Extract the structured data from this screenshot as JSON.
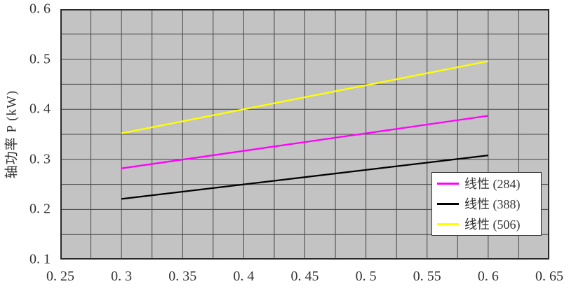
{
  "colors": {
    "page_bg": "#ffffff",
    "plot_bg": "#c3c3c3",
    "gridline": "#454545",
    "plot_border": "#2a2a2a",
    "text": "#333333",
    "legend_bg": "#ffffff",
    "legend_border": "#333333"
  },
  "chart_data": {
    "type": "line",
    "title": "",
    "xlabel": "",
    "ylabel": "轴功率 P (kW)",
    "xlim": [
      0.25,
      0.65
    ],
    "ylim": [
      0.1,
      0.6
    ],
    "x_ticks": [
      0.25,
      0.3,
      0.35,
      0.4,
      0.45,
      0.5,
      0.55,
      0.6,
      0.65
    ],
    "x_tick_labels": [
      "0. 25",
      "0. 3",
      "0. 35",
      "0. 4",
      "0. 45",
      "0. 5",
      "0. 55",
      "0. 6",
      "0. 65"
    ],
    "y_ticks": [
      0.6,
      0.5,
      0.4,
      0.3,
      0.2,
      0.1
    ],
    "y_tick_labels": [
      "0. 6",
      "0. 5",
      "0. 4",
      "0. 3",
      "0. 2",
      "0. 1"
    ],
    "x_minor_step": 0.025,
    "y_minor_step": 0.05,
    "grid": true,
    "legend_position": "inside lower-right",
    "series": [
      {
        "name": "线性 (284)",
        "color": "#ff00ff",
        "points": [
          [
            0.3,
            0.282
          ],
          [
            0.6,
            0.387
          ]
        ]
      },
      {
        "name": "线性 (388)",
        "color": "#000000",
        "points": [
          [
            0.3,
            0.221
          ],
          [
            0.6,
            0.308
          ]
        ]
      },
      {
        "name": "线性 (506)",
        "color": "#ffff00",
        "points": [
          [
            0.3,
            0.352
          ],
          [
            0.6,
            0.496
          ]
        ]
      }
    ]
  }
}
